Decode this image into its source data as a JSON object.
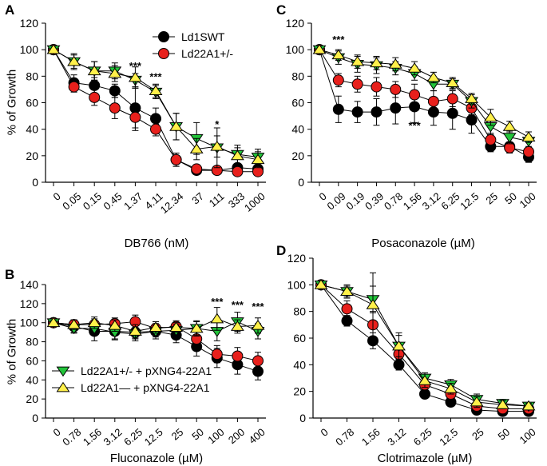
{
  "colors": {
    "black": "#000000",
    "red": "#e8201c",
    "green": "#22c43a",
    "yellow": "#fff04a",
    "axis": "#000000"
  },
  "chart_data": [
    {
      "panel": "A",
      "type": "line",
      "xlabel": "DB766 (nM)",
      "ylabel": "% of Growth",
      "categories": [
        "0",
        "0.05",
        "0.15",
        "0.45",
        "1.37",
        "4.11",
        "12.34",
        "37",
        "111",
        "333",
        "1000"
      ],
      "ylim": [
        0,
        120
      ],
      "yticks": [
        0,
        20,
        40,
        60,
        80,
        100,
        120
      ],
      "legend": {
        "position": "top-right",
        "entries": [
          {
            "series": 0,
            "label": "Ld1SWT"
          },
          {
            "series": 1,
            "label": "Ld22A1+/-"
          }
        ]
      },
      "series": [
        {
          "name": "Ld1SWT",
          "marker": "circle",
          "color": "black",
          "values": [
            100,
            75,
            73,
            69,
            56,
            48,
            17,
            9,
            9,
            11,
            10
          ],
          "errors": [
            1,
            6,
            6,
            5,
            15,
            8,
            5,
            2,
            3,
            3,
            3
          ]
        },
        {
          "name": "Ld22A1+/-",
          "marker": "circle",
          "color": "red",
          "values": [
            100,
            72,
            64,
            56,
            49,
            40,
            17,
            10,
            9,
            8,
            8
          ],
          "errors": [
            1,
            4,
            6,
            8,
            10,
            5,
            5,
            3,
            3,
            3,
            3
          ]
        },
        {
          "name": "Ld22A1+/- + pXNG4-22A1",
          "marker": "tri-down",
          "color": "green",
          "values": [
            100,
            91,
            84,
            84,
            77,
            68,
            42,
            33,
            26,
            21,
            19
          ],
          "errors": [
            1,
            5,
            7,
            6,
            5,
            5,
            10,
            12,
            15,
            7,
            6
          ]
        },
        {
          "name": "Ld22A1- + pXNG4-22A1",
          "marker": "tri-up",
          "color": "yellow",
          "values": [
            100,
            91,
            84,
            82,
            79,
            69,
            42,
            25,
            27,
            20,
            17
          ],
          "errors": [
            1,
            6,
            7,
            6,
            8,
            5,
            10,
            8,
            8,
            6,
            6
          ]
        }
      ],
      "annotations": [
        {
          "text": "***",
          "category": "1.37",
          "y": 85
        },
        {
          "text": "***",
          "category": "4.11",
          "y": 77
        },
        {
          "text": "*",
          "category": "111",
          "y": 41
        }
      ]
    },
    {
      "panel": "B",
      "type": "line",
      "xlabel": "Fluconazole (µM)",
      "ylabel": "% of Growth",
      "categories": [
        "0",
        "0.78",
        "1.56",
        "3.12",
        "6.25",
        "12.5",
        "25",
        "50",
        "100",
        "200",
        "400"
      ],
      "ylim": [
        0,
        140
      ],
      "yticks": [
        0,
        20,
        40,
        60,
        80,
        100,
        120,
        140
      ],
      "legend": {
        "position": "bottom-left",
        "entries": [
          {
            "series": 2,
            "label": "Ld22A1+/- + pXNG4-22A1"
          },
          {
            "series": 3,
            "label": "Ld22A1— + pXNG4-22A1"
          }
        ]
      },
      "series": [
        {
          "name": "Ld1SWT",
          "marker": "circle",
          "color": "black",
          "values": [
            100,
            96,
            91,
            91,
            90,
            91,
            87,
            75,
            63,
            56,
            49
          ],
          "errors": [
            2,
            6,
            10,
            8,
            7,
            8,
            8,
            10,
            10,
            10,
            9
          ]
        },
        {
          "name": "Ld22A1+/-",
          "marker": "circle",
          "color": "red",
          "values": [
            100,
            98,
            98,
            99,
            101,
            94,
            96,
            83,
            67,
            65,
            60
          ],
          "errors": [
            2,
            5,
            6,
            6,
            7,
            7,
            6,
            8,
            9,
            9,
            9
          ]
        },
        {
          "name": "Ld22A1+/- + pXNG4-22A1",
          "marker": "tri-down",
          "color": "green",
          "values": [
            100,
            94,
            94,
            90,
            88,
            91,
            92,
            94,
            91,
            101,
            91
          ],
          "errors": [
            2,
            5,
            7,
            8,
            7,
            6,
            6,
            8,
            10,
            10,
            8
          ]
        },
        {
          "name": "Ld22A1- + pXNG4-22A1",
          "marker": "tri-up",
          "color": "yellow",
          "values": [
            100,
            98,
            100,
            97,
            91,
            95,
            95,
            94,
            104,
            96,
            97
          ],
          "errors": [
            2,
            5,
            6,
            6,
            7,
            6,
            5,
            7,
            12,
            7,
            8
          ]
        }
      ],
      "annotations": [
        {
          "text": "***",
          "category": "100",
          "y": 118
        },
        {
          "text": "***",
          "category": "200",
          "y": 115
        },
        {
          "text": "***",
          "category": "400",
          "y": 113
        }
      ]
    },
    {
      "panel": "C",
      "type": "line",
      "xlabel": "Posaconazole (µM)",
      "ylabel": "",
      "categories": [
        "0",
        "0.09",
        "0.19",
        "0.39",
        "0.78",
        "1.56",
        "3.12",
        "6.25",
        "12.5",
        "25",
        "50",
        "100"
      ],
      "ylim": [
        0,
        120
      ],
      "yticks": [
        0,
        20,
        40,
        60,
        80,
        100,
        120
      ],
      "series": [
        {
          "name": "Ld1SWT",
          "marker": "circle",
          "color": "black",
          "values": [
            100,
            55,
            53,
            53,
            56,
            57,
            53,
            52,
            47,
            27,
            27,
            19
          ],
          "errors": [
            1,
            10,
            8,
            10,
            12,
            12,
            10,
            12,
            10,
            4,
            3,
            4
          ]
        },
        {
          "name": "Ld22A1+/-",
          "marker": "circle",
          "color": "red",
          "values": [
            100,
            77,
            74,
            72,
            70,
            66,
            61,
            63,
            56,
            32,
            26,
            23
          ],
          "errors": [
            1,
            5,
            6,
            7,
            6,
            8,
            8,
            6,
            5,
            5,
            4,
            3
          ]
        },
        {
          "name": "Ld22A1+/- + pXNG4-22A1",
          "marker": "tri-down",
          "color": "green",
          "values": [
            100,
            94,
            89,
            88,
            86,
            82,
            74,
            74,
            61,
            42,
            34,
            31
          ],
          "errors": [
            1,
            5,
            6,
            6,
            5,
            5,
            5,
            4,
            5,
            6,
            5,
            4
          ]
        },
        {
          "name": "Ld22A1- + pXNG4-22A1",
          "marker": "tri-up",
          "color": "yellow",
          "values": [
            100,
            96,
            91,
            90,
            89,
            86,
            79,
            75,
            63,
            49,
            42,
            34
          ],
          "errors": [
            1,
            4,
            5,
            5,
            5,
            5,
            4,
            4,
            4,
            6,
            4,
            4
          ]
        }
      ],
      "annotations": [
        {
          "text": "***",
          "category": "0.09",
          "y": 105
        },
        {
          "text": "***",
          "category": "1.56",
          "y": 40
        }
      ]
    },
    {
      "panel": "D",
      "type": "line",
      "xlabel": "Clotrimazole (µM)",
      "ylabel": "",
      "categories": [
        "0",
        "0.78",
        "1.56",
        "3.12",
        "6.25",
        "12.5",
        "25",
        "50",
        "100"
      ],
      "ylim": [
        0,
        120
      ],
      "yticks": [
        0,
        20,
        40,
        60,
        80,
        100,
        120
      ],
      "series": [
        {
          "name": "Ld1SWT",
          "marker": "circle",
          "color": "black",
          "values": [
            100,
            73,
            58,
            40,
            18,
            12,
            6,
            5,
            5
          ],
          "errors": [
            1,
            4,
            6,
            4,
            3,
            2,
            2,
            2,
            2
          ]
        },
        {
          "name": "Ld22A1+/-",
          "marker": "circle",
          "color": "red",
          "values": [
            100,
            82,
            70,
            48,
            25,
            18,
            9,
            7,
            7
          ],
          "errors": [
            1,
            6,
            10,
            6,
            4,
            3,
            3,
            3,
            2
          ]
        },
        {
          "name": "Ld22A1+/- + pXNG4-22A1",
          "marker": "tri-down",
          "color": "green",
          "values": [
            100,
            95,
            89,
            54,
            30,
            25,
            14,
            11,
            9
          ],
          "errors": [
            1,
            4,
            10,
            8,
            4,
            4,
            4,
            3,
            2
          ]
        },
        {
          "name": "Ld22A1- + pXNG4-22A1",
          "marker": "tri-up",
          "color": "yellow",
          "values": [
            100,
            95,
            85,
            54,
            28,
            22,
            12,
            10,
            9
          ],
          "errors": [
            1,
            5,
            24,
            10,
            5,
            4,
            4,
            3,
            2
          ]
        }
      ]
    }
  ],
  "panel_labels": [
    "A",
    "B",
    "C",
    "D"
  ]
}
